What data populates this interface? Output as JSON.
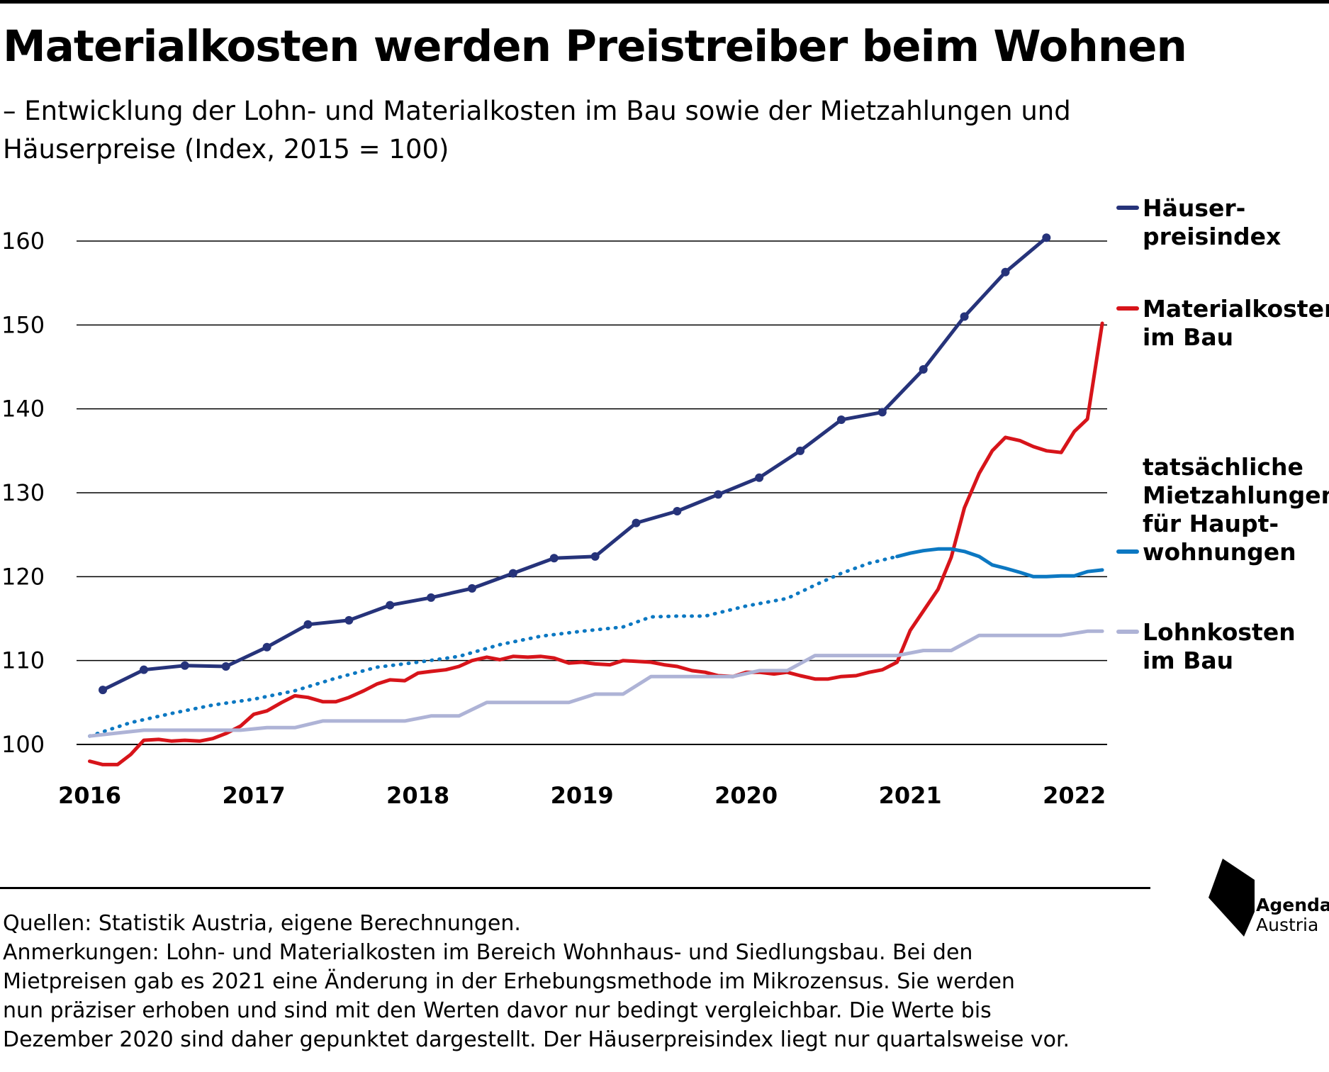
{
  "title": "Materialkosten werden Preistreiber beim Wohnen",
  "subtitle": "– Entwicklung der Lohn- und Materialkosten im Bau sowie der Mietzahlungen und Häuserpreise (Index, 2015 = 100)",
  "footer": {
    "lines": [
      "Quellen: Statistik Austria, eigene Berechnungen.",
      "Anmerkungen: Lohn- und Materialkosten im Bereich Wohnhaus- und Siedlungsbau. Bei den",
      "Mietpreisen gab es 2021 eine Änderung in der Erhebungsmethode im Mikrozensus. Sie werden",
      "nun präziser erhoben und sind mit den Werten davor nur bedingt vergleichbar. Die Werte bis",
      "Dezember 2020 sind daher gepunktet dargestellt. Der Häuserpreisindex liegt nur quartalsweise vor."
    ]
  },
  "logo": {
    "line1": "Agenda",
    "line2": "Austria"
  },
  "chart_data": {
    "type": "line",
    "title": "Materialkosten werden Preistreiber beim Wohnen",
    "subtitle": "– Entwicklung der Lohn- und Materialkosten im Bau sowie der Mietzahlungen und Häuserpreise (Index, 2015 = 100)",
    "xlabel": "",
    "ylabel": "",
    "x_ticks": [
      "2016",
      "2017",
      "2018",
      "2019",
      "2020",
      "2021",
      "2022"
    ],
    "x_tick_values": [
      2016,
      2017,
      2018,
      2019,
      2020,
      2021,
      2022
    ],
    "y_ticks": [
      100,
      110,
      120,
      130,
      140,
      150,
      160
    ],
    "xlim": [
      2015.92,
      2022.2
    ],
    "ylim": [
      100,
      160
    ],
    "grid": true,
    "legend_placement": "right",
    "series": [
      {
        "name": "Häuser- preisindex",
        "legend_lines": [
          "Häuser-",
          "preisindex"
        ],
        "color": "#26337a",
        "style": "solid-markers",
        "x": [
          2016.08,
          2016.33,
          2016.58,
          2016.83,
          2017.08,
          2017.33,
          2017.58,
          2017.83,
          2018.08,
          2018.33,
          2018.58,
          2018.83,
          2019.08,
          2019.33,
          2019.58,
          2019.83,
          2020.08,
          2020.33,
          2020.58,
          2020.83,
          2021.08,
          2021.33,
          2021.58,
          2021.83
        ],
        "y": [
          106.5,
          108.9,
          109.4,
          109.3,
          111.6,
          114.3,
          114.8,
          116.6,
          117.5,
          118.6,
          120.4,
          122.2,
          122.4,
          126.4,
          127.8,
          129.8,
          131.8,
          135.0,
          138.7,
          139.6,
          144.7,
          151.0,
          156.3,
          160.4
        ]
      },
      {
        "name": "Materialkosten im Bau",
        "legend_lines": [
          "Materialkosten",
          "im Bau"
        ],
        "color": "#d7141a",
        "style": "solid",
        "x": [
          2016.0,
          2016.08,
          2016.17,
          2016.25,
          2016.33,
          2016.42,
          2016.5,
          2016.58,
          2016.67,
          2016.75,
          2016.83,
          2016.92,
          2017.0,
          2017.08,
          2017.17,
          2017.25,
          2017.33,
          2017.42,
          2017.5,
          2017.58,
          2017.67,
          2017.75,
          2017.83,
          2017.92,
          2018.0,
          2018.08,
          2018.17,
          2018.25,
          2018.33,
          2018.42,
          2018.5,
          2018.58,
          2018.67,
          2018.75,
          2018.83,
          2018.92,
          2019.0,
          2019.08,
          2019.17,
          2019.25,
          2019.33,
          2019.42,
          2019.5,
          2019.58,
          2019.67,
          2019.75,
          2019.83,
          2019.92,
          2020.0,
          2020.08,
          2020.17,
          2020.25,
          2020.33,
          2020.42,
          2020.5,
          2020.58,
          2020.67,
          2020.75,
          2020.83,
          2020.92,
          2021.0,
          2021.08,
          2021.17,
          2021.25,
          2021.33,
          2021.42,
          2021.5,
          2021.58,
          2021.67,
          2021.75,
          2021.83,
          2021.92,
          2022.0,
          2022.08,
          2022.17
        ],
        "y": [
          98.0,
          97.6,
          97.6,
          98.8,
          100.5,
          100.6,
          100.4,
          100.5,
          100.4,
          100.7,
          101.3,
          102.2,
          103.6,
          104.0,
          105.0,
          105.8,
          105.6,
          105.1,
          105.1,
          105.6,
          106.4,
          107.2,
          107.7,
          107.6,
          108.5,
          108.7,
          108.9,
          109.3,
          110.0,
          110.4,
          110.1,
          110.5,
          110.4,
          110.5,
          110.3,
          109.7,
          109.8,
          109.6,
          109.5,
          110.0,
          109.9,
          109.8,
          109.5,
          109.3,
          108.8,
          108.6,
          108.2,
          108.1,
          108.6,
          108.6,
          108.4,
          108.6,
          108.2,
          107.8,
          107.8,
          108.1,
          108.2,
          108.6,
          108.9,
          109.8,
          113.6,
          115.9,
          118.5,
          122.3,
          128.2,
          132.3,
          135.0,
          136.6,
          136.2,
          135.5,
          135.0,
          134.8,
          137.3,
          138.8,
          150.2
        ]
      },
      {
        "name": "tatsächliche Mietzahlungen für Haupt- wohnungen",
        "legend_lines": [
          "tatsächliche",
          "Mietzahlungen",
          "für Haupt-",
          "wohnungen"
        ],
        "color": "#0c78c2",
        "style": "dotted-until-2021-solid-after",
        "solid_from_x": 2020.92,
        "x": [
          2016.0,
          2016.25,
          2016.5,
          2016.75,
          2017.0,
          2017.25,
          2017.5,
          2017.75,
          2018.0,
          2018.25,
          2018.5,
          2018.75,
          2019.0,
          2019.25,
          2019.42,
          2019.58,
          2019.75,
          2020.0,
          2020.25,
          2020.42,
          2020.58,
          2020.75,
          2020.92,
          2021.0,
          2021.08,
          2021.17,
          2021.25,
          2021.33,
          2021.42,
          2021.5,
          2021.58,
          2021.67,
          2021.75,
          2021.83,
          2021.92,
          2022.0,
          2022.08,
          2022.17
        ],
        "y": [
          101.0,
          102.6,
          103.7,
          104.7,
          105.4,
          106.4,
          107.9,
          109.2,
          109.8,
          110.5,
          111.9,
          112.9,
          113.5,
          114.0,
          115.2,
          115.3,
          115.3,
          116.5,
          117.4,
          119.0,
          120.4,
          121.6,
          122.4,
          122.8,
          123.1,
          123.3,
          123.3,
          123.0,
          122.4,
          121.4,
          121.0,
          120.5,
          120.0,
          120.0,
          120.1,
          120.1,
          120.6,
          120.8
        ]
      },
      {
        "name": "Lohnkosten im Bau",
        "legend_lines": [
          "Lohnkosten",
          "im Bau"
        ],
        "color": "#aeb3d6",
        "style": "solid-steps",
        "x": [
          2016.0,
          2016.33,
          2016.5,
          2016.92,
          2017.08,
          2017.25,
          2017.42,
          2017.58,
          2017.75,
          2017.92,
          2018.08,
          2018.25,
          2018.42,
          2018.58,
          2018.75,
          2018.92,
          2019.08,
          2019.25,
          2019.42,
          2019.58,
          2019.75,
          2019.92,
          2020.08,
          2020.25,
          2020.42,
          2020.58,
          2020.75,
          2020.92,
          2021.08,
          2021.25,
          2021.42,
          2021.58,
          2021.75,
          2021.92,
          2022.08,
          2022.17
        ],
        "y": [
          101.0,
          101.7,
          101.7,
          101.7,
          102.0,
          102.0,
          102.8,
          102.8,
          102.8,
          102.8,
          103.4,
          103.4,
          105.0,
          105.0,
          105.0,
          105.0,
          106.0,
          106.0,
          108.1,
          108.1,
          108.1,
          108.1,
          108.8,
          108.8,
          110.6,
          110.6,
          110.6,
          110.6,
          111.2,
          111.2,
          113.0,
          113.0,
          113.0,
          113.0,
          113.5,
          113.5
        ]
      }
    ]
  }
}
